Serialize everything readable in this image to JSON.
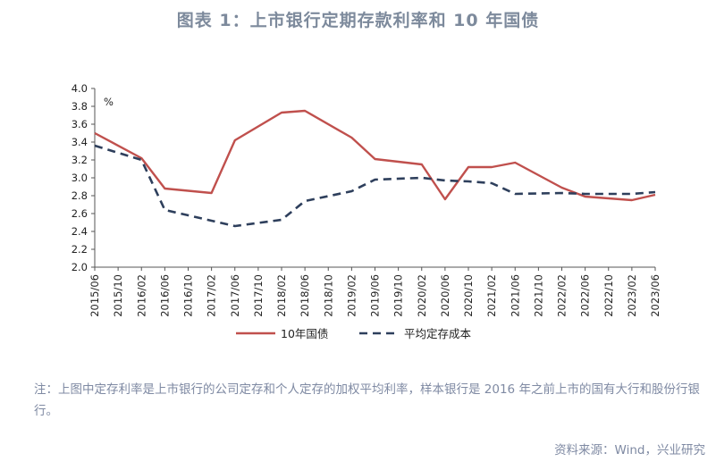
{
  "title": "图表 1：上市银行定期存款利率和 10 年国债",
  "note": "注：上图中定存利率是上市银行的公司定存和个人定存的加权平均利率，样本银行是 2016 年之前上市的国有大行和股份行银行。",
  "source": "资料来源：Wind，兴业研究",
  "chart_data": {
    "type": "line",
    "unit_label": "%",
    "ylim": [
      2.0,
      4.0
    ],
    "yticks": [
      "4.0",
      "3.8",
      "3.6",
      "3.4",
      "3.2",
      "3.0",
      "2.8",
      "2.6",
      "2.4",
      "2.2",
      "2.0"
    ],
    "categories": [
      "2015/06",
      "2015/10",
      "2016/02",
      "2016/06",
      "2016/10",
      "2017/02",
      "2017/06",
      "2017/10",
      "2018/02",
      "2018/06",
      "2018/10",
      "2019/02",
      "2019/06",
      "2019/10",
      "2020/02",
      "2020/06",
      "2020/10",
      "2021/02",
      "2021/06",
      "2021/10",
      "2022/02",
      "2022/06",
      "2022/10",
      "2023/02",
      "2023/06"
    ],
    "grid": false,
    "legend_position": "bottom",
    "series": [
      {
        "name": "10年国债",
        "color": "#c0504d",
        "style": "solid",
        "x": [
          "2015/06",
          "2016/02",
          "2016/06",
          "2017/02",
          "2017/06",
          "2018/02",
          "2018/06",
          "2019/02",
          "2019/06",
          "2020/02",
          "2020/06",
          "2020/10",
          "2021/02",
          "2021/06",
          "2022/02",
          "2022/06",
          "2022/10",
          "2023/02",
          "2023/06"
        ],
        "y": [
          3.5,
          3.22,
          2.88,
          2.83,
          3.42,
          3.73,
          3.75,
          3.45,
          3.21,
          3.15,
          2.76,
          3.12,
          3.12,
          3.17,
          2.89,
          2.79,
          2.77,
          2.75,
          2.81
        ]
      },
      {
        "name": "平均定存成本",
        "color": "#2e3f5c",
        "style": "dashed",
        "x": [
          "2015/06",
          "2016/02",
          "2016/06",
          "2017/02",
          "2017/06",
          "2018/02",
          "2018/06",
          "2019/02",
          "2019/06",
          "2020/02",
          "2020/06",
          "2020/10",
          "2021/02",
          "2021/06",
          "2022/02",
          "2022/06",
          "2022/10",
          "2023/02",
          "2023/06"
        ],
        "y": [
          3.36,
          3.2,
          2.64,
          2.52,
          2.46,
          2.53,
          2.74,
          2.85,
          2.98,
          3.0,
          2.97,
          2.96,
          2.94,
          2.82,
          2.83,
          2.82,
          2.82,
          2.82,
          2.84
        ]
      }
    ]
  }
}
